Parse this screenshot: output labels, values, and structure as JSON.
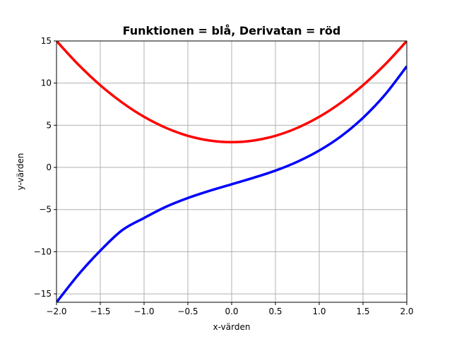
{
  "chart_data": {
    "type": "line",
    "title": "Funktionen = blå, Derivatan = röd",
    "xlabel": "x-värden",
    "ylabel": "y-värden",
    "xlim": [
      -2.0,
      2.0
    ],
    "ylim": [
      -16,
      15
    ],
    "grid": true,
    "x_ticks": [
      {
        "value": -2.0,
        "label": "−2.0"
      },
      {
        "value": -1.5,
        "label": "−1.5"
      },
      {
        "value": -1.0,
        "label": "−1.0"
      },
      {
        "value": -0.5,
        "label": "−0.5"
      },
      {
        "value": 0.0,
        "label": "0.0"
      },
      {
        "value": 0.5,
        "label": "0.5"
      },
      {
        "value": 1.0,
        "label": "1.0"
      },
      {
        "value": 1.5,
        "label": "1.5"
      },
      {
        "value": 2.0,
        "label": "2.0"
      }
    ],
    "y_ticks": [
      {
        "value": 15,
        "label": "15"
      },
      {
        "value": 10,
        "label": "10"
      },
      {
        "value": 5,
        "label": "5"
      },
      {
        "value": 0,
        "label": "0"
      },
      {
        "value": -5,
        "label": "−5"
      },
      {
        "value": -10,
        "label": "−10"
      },
      {
        "value": -15,
        "label": "−15"
      }
    ],
    "x": [
      -2.0,
      -1.75,
      -1.5,
      -1.25,
      -1.0,
      -0.75,
      -0.5,
      -0.25,
      0.0,
      0.25,
      0.5,
      0.75,
      1.0,
      1.25,
      1.5,
      1.75,
      2.0
    ],
    "series": [
      {
        "color": "#0000ff",
        "values": [
          -16.0,
          -12.72,
          -9.88,
          -7.45,
          -6.0,
          -4.67,
          -3.63,
          -2.77,
          -2.0,
          -1.23,
          -0.38,
          0.67,
          2.0,
          3.7,
          5.88,
          8.61,
          12.0
        ]
      },
      {
        "color": "#ff0000",
        "values": [
          15.0,
          12.19,
          9.75,
          7.69,
          6.0,
          4.69,
          3.75,
          3.19,
          3.0,
          3.19,
          3.75,
          4.69,
          6.0,
          7.69,
          9.75,
          12.19,
          15.0
        ]
      }
    ]
  }
}
